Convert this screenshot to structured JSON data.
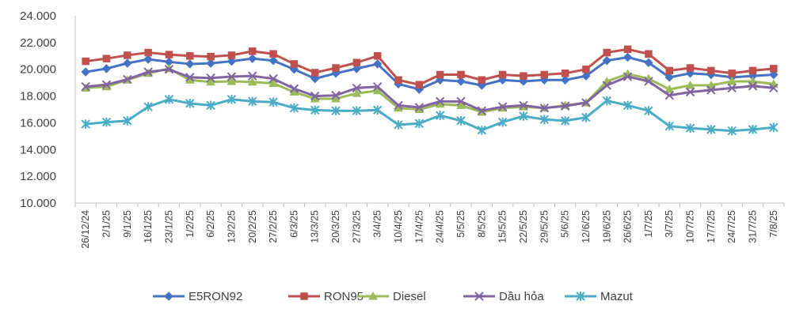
{
  "chart_data": {
    "type": "line",
    "title": "",
    "xlabel": "",
    "ylabel": "",
    "ylim": [
      10000,
      24000
    ],
    "yticks": [
      "10.000",
      "12.000",
      "14.000",
      "16.000",
      "18.000",
      "20.000",
      "22.000",
      "24.000"
    ],
    "grid": false,
    "legend_position": "bottom",
    "categories": [
      "26/12/24",
      "2/1/25",
      "9/1/25",
      "16/1/25",
      "23/1/25",
      "1/2/25",
      "6/2/25",
      "13/2/25",
      "20/2/25",
      "27/2/25",
      "6/3/25",
      "13/3/25",
      "20/3/25",
      "27/3/25",
      "3/4/25",
      "10/4/25",
      "17/4/25",
      "24/4/25",
      "5/5/25",
      "8/5/25",
      "15/5/25",
      "22/5/25",
      "29/5/25",
      "5/6/25",
      "12/6/25",
      "19/6/25",
      "26/6/25",
      "1/7/25",
      "3/7/25",
      "10/7/25",
      "17/7/25",
      "24/7/25",
      "31/7/25",
      "7/8/25"
    ],
    "series": [
      {
        "name": "E5RON92",
        "color": "#4472C4",
        "marker": "diamond",
        "values": [
          19800,
          20050,
          20450,
          20750,
          20550,
          20400,
          20450,
          20600,
          20800,
          20650,
          20000,
          19300,
          19700,
          20050,
          20400,
          18900,
          18500,
          19200,
          19100,
          18800,
          19200,
          19100,
          19200,
          19200,
          19500,
          20650,
          20900,
          20500,
          19400,
          19700,
          19600,
          19400,
          19500,
          19600
        ]
      },
      {
        "name": "RON95",
        "color": "#C0504D",
        "marker": "square",
        "values": [
          20600,
          20800,
          21050,
          21250,
          21100,
          21000,
          20950,
          21050,
          21350,
          21150,
          20400,
          19750,
          20100,
          20500,
          21000,
          19200,
          18850,
          19600,
          19600,
          19200,
          19600,
          19500,
          19600,
          19700,
          20000,
          21250,
          21500,
          21150,
          19900,
          20100,
          19900,
          19700,
          19900,
          20050
        ]
      },
      {
        "name": "Diesel",
        "color": "#9BBB59",
        "marker": "triangle",
        "values": [
          18600,
          18700,
          19200,
          19700,
          20050,
          19200,
          19050,
          19100,
          19050,
          18950,
          18300,
          17800,
          17800,
          18200,
          18400,
          17100,
          17000,
          17400,
          17300,
          16800,
          17100,
          17200,
          17100,
          17300,
          17500,
          19100,
          19650,
          19300,
          18500,
          18800,
          18800,
          19100,
          19100,
          18900
        ]
      },
      {
        "name": "Dầu hỏa",
        "color": "#8064A2",
        "marker": "x",
        "values": [
          18700,
          18850,
          19250,
          19800,
          20000,
          19400,
          19350,
          19450,
          19500,
          19300,
          18550,
          18000,
          18050,
          18600,
          18700,
          17300,
          17150,
          17600,
          17600,
          16900,
          17200,
          17300,
          17100,
          17250,
          17500,
          18800,
          19450,
          19100,
          18050,
          18300,
          18450,
          18600,
          18750,
          18600
        ]
      },
      {
        "name": "Mazut",
        "color": "#4BACC6",
        "marker": "star",
        "values": [
          15900,
          16050,
          16150,
          17200,
          17750,
          17450,
          17300,
          17750,
          17600,
          17550,
          17100,
          16950,
          16900,
          16900,
          16950,
          15850,
          15950,
          16550,
          16150,
          15450,
          16050,
          16500,
          16250,
          16150,
          16400,
          17650,
          17300,
          16900,
          15750,
          15600,
          15500,
          15400,
          15500,
          15650
        ]
      }
    ]
  }
}
